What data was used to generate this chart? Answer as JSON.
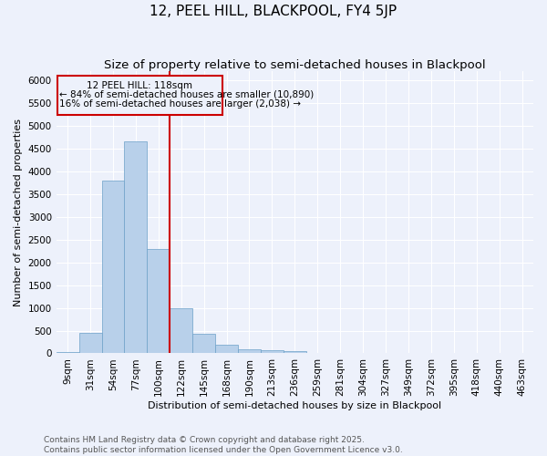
{
  "title": "12, PEEL HILL, BLACKPOOL, FY4 5JP",
  "subtitle": "Size of property relative to semi-detached houses in Blackpool",
  "xlabel": "Distribution of semi-detached houses by size in Blackpool",
  "ylabel": "Number of semi-detached properties",
  "bins": [
    "9sqm",
    "31sqm",
    "54sqm",
    "77sqm",
    "100sqm",
    "122sqm",
    "145sqm",
    "168sqm",
    "190sqm",
    "213sqm",
    "236sqm",
    "259sqm",
    "281sqm",
    "304sqm",
    "327sqm",
    "349sqm",
    "372sqm",
    "395sqm",
    "418sqm",
    "440sqm",
    "463sqm"
  ],
  "values": [
    30,
    450,
    3800,
    4650,
    2300,
    1000,
    420,
    180,
    90,
    60,
    50,
    5,
    3,
    2,
    1,
    1,
    0,
    0,
    0,
    0,
    0
  ],
  "bar_color": "#b8d0ea",
  "bar_edge_color": "#6ca0c8",
  "vline_x_index": 5,
  "vline_color": "#cc0000",
  "ylim": [
    0,
    6200
  ],
  "yticks": [
    0,
    500,
    1000,
    1500,
    2000,
    2500,
    3000,
    3500,
    4000,
    4500,
    5000,
    5500,
    6000
  ],
  "annotation_title": "12 PEEL HILL: 118sqm",
  "annotation_line1": "← 84% of semi-detached houses are smaller (10,890)",
  "annotation_line2": "16% of semi-detached houses are larger (2,038) →",
  "annotation_box_color": "#cc0000",
  "footer_line1": "Contains HM Land Registry data © Crown copyright and database right 2025.",
  "footer_line2": "Contains public sector information licensed under the Open Government Licence v3.0.",
  "bg_color": "#edf1fb",
  "grid_color": "#ffffff",
  "title_fontsize": 11,
  "subtitle_fontsize": 9.5,
  "axis_label_fontsize": 8,
  "tick_fontsize": 7.5,
  "annotation_fontsize": 7.5,
  "footer_fontsize": 6.5
}
